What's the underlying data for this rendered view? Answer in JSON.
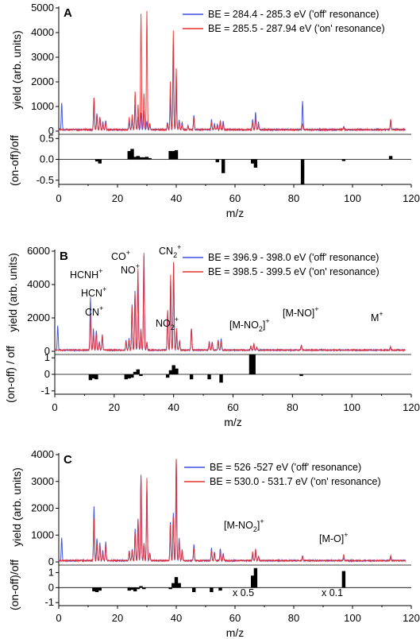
{
  "chart_data": [
    {
      "panel": "A",
      "type": "line",
      "xlabel": "m/z",
      "ylabel": "yield (arb. units)",
      "diff_ylabel": "(on-off)/off",
      "xlim": [
        0,
        120
      ],
      "ylim": [
        0,
        5000
      ],
      "diff_ylim": [
        -0.6,
        0.6
      ],
      "x_ticks": [
        "0",
        "20",
        "40",
        "60",
        "80",
        "100",
        "120"
      ],
      "y_ticks": [
        "0",
        "1000",
        "2000",
        "3000",
        "4000",
        "5000"
      ],
      "diff_ticks": [
        "0.5",
        "0.0",
        "-0.5"
      ],
      "legend": {
        "placement": "top-right",
        "entries": [
          {
            "label": "BE = 284.4 - 285.3 eV ('off' resonance)",
            "color": "#3b4fe0"
          },
          {
            "label": "BE = 285.5 - 287.94 eV ('on' resonance)",
            "color": "#e83030"
          }
        ]
      },
      "series": [
        {
          "color": "#3b4fe0",
          "x": [
            1,
            12,
            13,
            14,
            15,
            16,
            24,
            25,
            26,
            27,
            28,
            29,
            30,
            31,
            37,
            38,
            39,
            40,
            41,
            42,
            44,
            46,
            52,
            53,
            54,
            55,
            56,
            66,
            67,
            68,
            83,
            97,
            113
          ],
          "y": [
            1100,
            1300,
            650,
            500,
            300,
            350,
            300,
            450,
            1000,
            500,
            700,
            800,
            350,
            200,
            300,
            1300,
            3500,
            1700,
            400,
            300,
            150,
            600,
            400,
            250,
            200,
            300,
            350,
            400,
            700,
            300,
            1150,
            150,
            300
          ]
        },
        {
          "color": "#e83030",
          "x": [
            12,
            13,
            14,
            15,
            16,
            24,
            25,
            26,
            27,
            28,
            29,
            30,
            31,
            37,
            38,
            39,
            40,
            41,
            42,
            44,
            46,
            52,
            53,
            54,
            55,
            56,
            66,
            67,
            68,
            83,
            97,
            113
          ],
          "y": [
            1300,
            600,
            500,
            250,
            300,
            500,
            600,
            1550,
            1000,
            4700,
            1500,
            4800,
            250,
            250,
            1950,
            4000,
            2500,
            350,
            200,
            150,
            500,
            300,
            150,
            150,
            400,
            200,
            300,
            450,
            200,
            250,
            100,
            450
          ]
        }
      ],
      "diff": {
        "x": [
          13,
          14,
          24,
          25,
          26,
          27,
          28,
          29,
          30,
          31,
          38,
          39,
          40,
          54,
          56,
          66,
          67,
          83,
          97,
          113
        ],
        "y": [
          -0.05,
          -0.1,
          0.2,
          0.25,
          0.06,
          0.08,
          0.05,
          0.05,
          0.06,
          0.03,
          0.2,
          0.2,
          0.22,
          -0.07,
          -0.33,
          -0.1,
          -0.2,
          -0.6,
          -0.04,
          0.08
        ]
      }
    },
    {
      "panel": "B",
      "type": "line",
      "xlabel": "m/z",
      "ylabel": "yield (arb. units)",
      "diff_ylabel": "(on-off) / off",
      "xlim": [
        0,
        120
      ],
      "ylim": [
        0,
        6000
      ],
      "diff_ylim": [
        -1.2,
        1.2
      ],
      "x_ticks": [
        "0",
        "20",
        "40",
        "60",
        "80",
        "100",
        "120"
      ],
      "y_ticks": [
        "0",
        "2000",
        "4000",
        "6000"
      ],
      "diff_ticks": [
        "1",
        "0",
        "-1"
      ],
      "legend": {
        "placement": "top-right",
        "entries": [
          {
            "label": "BE = 396.9 - 398.0 eV ('off' resonance)",
            "color": "#3b4fe0"
          },
          {
            "label": "BE = 398.5 - 399.5 eV ('on' resonance)",
            "color": "#e83030"
          }
        ]
      },
      "annotations": [
        {
          "label": "CO",
          "sup": "+",
          "x": 28
        },
        {
          "label": "HCNH",
          "sup": "+",
          "x": 28
        },
        {
          "label": "HCN",
          "sup": "+",
          "x": 27
        },
        {
          "label": "CN",
          "sup": "+",
          "x": 26
        },
        {
          "label": "NO",
          "sup": "+",
          "x": 30
        },
        {
          "label": "CN",
          "sub": "2",
          "sup": "+",
          "x": 40
        },
        {
          "label": "NO",
          "sub": "2",
          "sup": "+",
          "x": 46
        },
        {
          "label": "[M-NO",
          "sub": "2",
          "tail": "]",
          "sup": "+",
          "x": 67
        },
        {
          "label": "[M-NO]",
          "sup": "+",
          "x": 83
        },
        {
          "label": "M",
          "sup": "+",
          "x": 113
        }
      ],
      "series": [
        {
          "color": "#3b4fe0",
          "x": [
            1,
            12,
            13,
            14,
            15,
            16,
            24,
            25,
            26,
            27,
            28,
            29,
            30,
            31,
            38,
            39,
            40,
            41,
            42,
            46,
            52,
            53,
            55,
            56,
            66,
            67,
            68,
            83,
            113
          ],
          "y": [
            1500,
            3200,
            1300,
            1200,
            500,
            950,
            600,
            700,
            2700,
            3550,
            4700,
            1200,
            5700,
            400,
            2300,
            4200,
            5200,
            1100,
            500,
            1300,
            500,
            500,
            600,
            700,
            200,
            300,
            150,
            300,
            200
          ]
        },
        {
          "color": "#e83030",
          "x": [
            12,
            13,
            14,
            15,
            16,
            24,
            25,
            26,
            27,
            28,
            29,
            30,
            31,
            38,
            39,
            40,
            41,
            42,
            46,
            52,
            53,
            55,
            56,
            66,
            67,
            68,
            83,
            113
          ],
          "y": [
            2200,
            1000,
            1050,
            400,
            900,
            500,
            600,
            2600,
            3400,
            4900,
            1300,
            5800,
            500,
            2400,
            4500,
            5300,
            1300,
            600,
            1300,
            500,
            450,
            550,
            500,
            250,
            400,
            200,
            300,
            200
          ]
        }
      ],
      "diff": {
        "x": [
          12,
          13,
          14,
          24,
          25,
          26,
          27,
          28,
          29,
          38,
          39,
          40,
          41,
          46,
          52,
          56,
          66,
          67,
          83
        ],
        "y": [
          -0.35,
          -0.25,
          -0.3,
          -0.3,
          -0.25,
          -0.2,
          0.15,
          0.3,
          -0.1,
          -0.2,
          0.25,
          0.55,
          0.35,
          -0.3,
          -0.3,
          -0.5,
          1.2,
          1.2,
          -0.1
        ]
      }
    },
    {
      "panel": "C",
      "type": "line",
      "xlabel": "m/z",
      "ylabel": "yield (arb. units)",
      "diff_ylabel": "(on-off)/off",
      "xlim": [
        0,
        120
      ],
      "ylim": [
        0,
        4300
      ],
      "diff_ylim": [
        -1.2,
        1.5
      ],
      "x_ticks": [
        "0",
        "20",
        "40",
        "60",
        "80",
        "100",
        "120"
      ],
      "y_ticks": [
        "0",
        "1000",
        "2000",
        "3000",
        "4000"
      ],
      "diff_ticks": [
        "1",
        "0",
        "-1"
      ],
      "legend": {
        "placement": "top-right",
        "entries": [
          {
            "label": "BE = 526 -527 eV ('off' resonance)",
            "color": "#3b4fe0"
          },
          {
            "label": "BE = 530.0 - 531.7 eV ('on' resonance)",
            "color": "#e83030"
          }
        ]
      },
      "annotations": [
        {
          "label": "[M-NO",
          "sub": "2",
          "tail": "]",
          "sup": "+",
          "x": 67
        },
        {
          "label": "[M-O]",
          "sup": "+",
          "x": 97
        }
      ],
      "diff_annotations": [
        {
          "label": "x 0.5",
          "x": 67
        },
        {
          "label": "x 0.1",
          "x": 97
        }
      ],
      "series": [
        {
          "color": "#3b4fe0",
          "x": [
            1,
            12,
            13,
            14,
            15,
            16,
            24,
            25,
            26,
            27,
            28,
            29,
            30,
            31,
            38,
            39,
            40,
            41,
            42,
            46,
            52,
            53,
            55,
            56,
            66,
            67,
            68,
            83,
            97,
            113
          ],
          "y": [
            900,
            2200,
            900,
            700,
            400,
            750,
            400,
            450,
            1250,
            1700,
            3400,
            600,
            2800,
            300,
            1550,
            1900,
            4050,
            900,
            400,
            650,
            500,
            350,
            500,
            300,
            250,
            350,
            150,
            200,
            100,
            150
          ]
        },
        {
          "color": "#e83030",
          "x": [
            12,
            13,
            14,
            15,
            16,
            24,
            25,
            26,
            27,
            28,
            29,
            30,
            31,
            38,
            39,
            40,
            41,
            42,
            46,
            52,
            53,
            55,
            56,
            66,
            67,
            68,
            83,
            97,
            113
          ],
          "y": [
            1700,
            700,
            600,
            300,
            650,
            350,
            400,
            1100,
            1600,
            3450,
            700,
            3300,
            300,
            1450,
            1750,
            4100,
            800,
            450,
            500,
            400,
            300,
            350,
            250,
            350,
            500,
            200,
            200,
            250,
            200
          ]
        }
      ],
      "diff": {
        "x": [
          12,
          13,
          14,
          24,
          25,
          26,
          27,
          28,
          29,
          38,
          39,
          40,
          41,
          46,
          52,
          55,
          66,
          67,
          97
        ],
        "y": [
          -0.25,
          -0.3,
          -0.2,
          -0.2,
          -0.15,
          -0.25,
          -0.1,
          0.1,
          -0.1,
          -0.1,
          0.3,
          0.7,
          0.3,
          -0.3,
          -0.3,
          -0.2,
          0.8,
          1.3,
          1.1
        ]
      }
    }
  ]
}
